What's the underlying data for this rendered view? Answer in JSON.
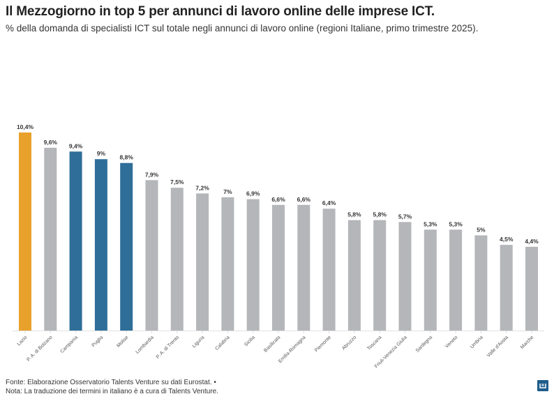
{
  "title": "Il Mezzogiorno in top 5 per annunci di lavoro online delle imprese ICT.",
  "subtitle": "% della domanda di specialisti ICT sul totale negli annunci di lavoro online (regioni Italiane, primo trimestre 2025).",
  "notes": {
    "source": "Fonte: Elaborazione Osservatorio Talents Venture su dati Eurostat. •",
    "note": "Nota: La traduzione dei termini in italiano è a cura di Talents Venture."
  },
  "colors": {
    "highlight": "#E8A12B",
    "south": "#2F6E99",
    "other": "#B4B6BA"
  },
  "chart_data": {
    "type": "bar",
    "categories": [
      "Lazio",
      "P. A. di Bolzano",
      "Campania",
      "Puglia",
      "Molise",
      "Lombardia",
      "P. A. di Trento",
      "Liguria",
      "Calabria",
      "Sicilia",
      "Basilicata",
      "Emilia-Romagna",
      "Piemonte",
      "Abruzzo",
      "Toscana",
      "Friuli-Venezia Giulia",
      "Sardegna",
      "Veneto",
      "Umbria",
      "Valle d'Aosta",
      "Marche"
    ],
    "values": [
      10.4,
      9.6,
      9.4,
      9,
      8.8,
      7.9,
      7.5,
      7.2,
      7,
      6.9,
      6.6,
      6.6,
      6.4,
      5.8,
      5.8,
      5.7,
      5.3,
      5.3,
      5,
      4.5,
      4.4
    ],
    "labels": [
      "10,4%",
      "9,6%",
      "9,4%",
      "9%",
      "8,8%",
      "7,9%",
      "7,5%",
      "7,2%",
      "7%",
      "6,9%",
      "6,6%",
      "6,6%",
      "6,4%",
      "5,8%",
      "5,8%",
      "5,7%",
      "5,3%",
      "5,3%",
      "5%",
      "4,5%",
      "4,4%"
    ],
    "color_groups": [
      "highlight",
      "other",
      "south",
      "south",
      "south",
      "other",
      "other",
      "other",
      "other",
      "other",
      "other",
      "other",
      "other",
      "other",
      "other",
      "other",
      "other",
      "other",
      "other",
      "other",
      "other"
    ],
    "ylim": [
      0,
      10.4
    ],
    "grid": false
  }
}
